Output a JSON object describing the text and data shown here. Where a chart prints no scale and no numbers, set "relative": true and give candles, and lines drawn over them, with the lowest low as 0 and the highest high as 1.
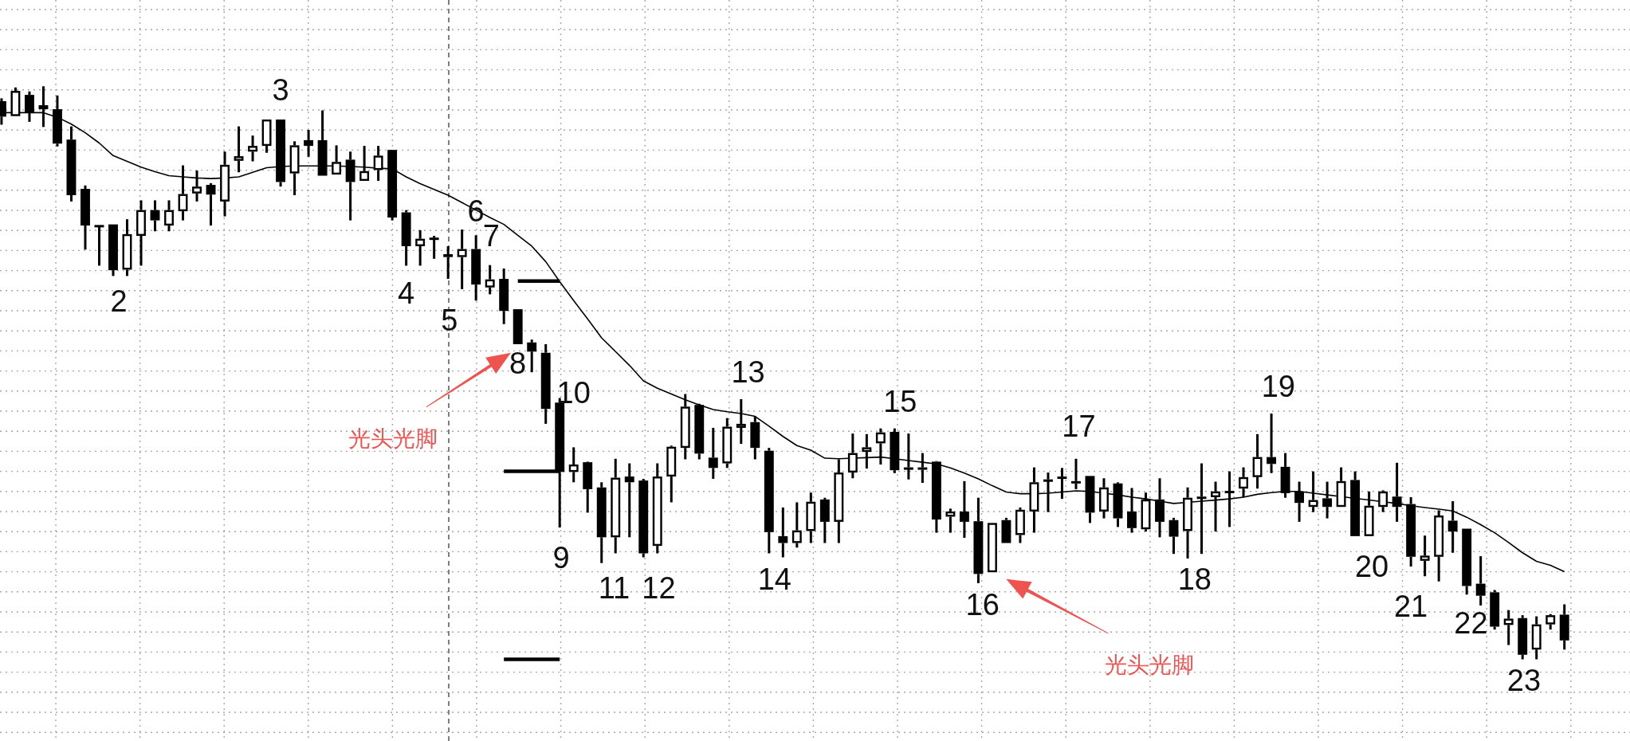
{
  "chart_data": {
    "type": "candlestick",
    "relative": true,
    "color": "#000000",
    "grid": true,
    "categories": [
      null,
      null,
      null,
      null,
      null,
      null,
      null,
      null,
      null,
      null,
      null,
      null,
      null,
      null,
      null,
      null,
      null,
      null,
      null,
      null,
      null,
      null,
      null,
      null,
      null,
      null,
      null,
      null,
      null,
      null,
      null,
      null,
      null,
      null,
      null,
      null,
      null,
      null,
      null,
      null,
      null,
      null,
      null,
      null,
      null,
      null,
      null,
      null,
      null,
      null,
      null,
      null,
      null,
      null,
      null,
      null,
      null,
      null,
      null,
      null,
      null,
      null,
      null,
      null,
      null,
      null,
      null,
      null,
      null,
      null,
      null,
      null,
      null,
      null,
      null,
      null,
      null,
      null,
      null,
      null,
      null,
      null,
      null,
      null,
      null,
      null,
      null,
      null,
      null,
      null,
      null,
      null,
      null,
      null,
      null,
      null,
      null,
      null,
      null,
      null,
      null,
      null,
      null,
      null,
      null,
      null,
      null,
      null,
      null,
      null,
      null,
      null,
      null
    ],
    "ohlc": [
      [
        0.974,
        0.979,
        0.933,
        0.947
      ],
      [
        0.948,
        0.998,
        0.948,
        0.992
      ],
      [
        0.985,
        0.991,
        0.938,
        0.954
      ],
      [
        0.967,
        1.0,
        0.929,
        0.96
      ],
      [
        0.96,
        0.984,
        0.895,
        0.9
      ],
      [
        0.907,
        0.93,
        0.799,
        0.81
      ],
      [
        0.821,
        0.827,
        0.715,
        0.757
      ],
      [
        0.758,
        0.758,
        0.687,
        0.757
      ],
      [
        0.759,
        0.759,
        0.669,
        0.679
      ],
      [
        0.68,
        0.768,
        0.669,
        0.742
      ],
      [
        0.739,
        0.801,
        0.687,
        0.784
      ],
      [
        0.784,
        0.801,
        0.747,
        0.766
      ],
      [
        0.757,
        0.801,
        0.747,
        0.784
      ],
      [
        0.782,
        0.862,
        0.766,
        0.812
      ],
      [
        0.813,
        0.853,
        0.799,
        0.825
      ],
      [
        0.828,
        0.831,
        0.757,
        0.811
      ],
      [
        0.799,
        0.886,
        0.773,
        0.863
      ],
      [
        0.87,
        0.93,
        0.85,
        0.878
      ],
      [
        0.886,
        0.914,
        0.869,
        0.896
      ],
      [
        0.896,
        0.942,
        0.884,
        0.942
      ],
      [
        0.942,
        0.942,
        0.825,
        0.833
      ],
      [
        0.848,
        0.904,
        0.81,
        0.897
      ],
      [
        0.906,
        0.924,
        0.877,
        0.896
      ],
      [
        0.906,
        0.958,
        0.844,
        0.844
      ],
      [
        0.846,
        0.897,
        0.846,
        0.868
      ],
      [
        0.872,
        0.886,
        0.766,
        0.833
      ],
      [
        0.835,
        0.896,
        0.835,
        0.852
      ],
      [
        0.854,
        0.896,
        0.835,
        0.879
      ],
      [
        0.889,
        0.889,
        0.766,
        0.771
      ],
      [
        0.78,
        0.784,
        0.687,
        0.721
      ],
      [
        0.721,
        0.749,
        0.687,
        0.734
      ],
      [
        0.736,
        0.739,
        0.699,
        0.734
      ],
      [
        0.707,
        0.721,
        0.664,
        0.702
      ],
      [
        0.702,
        0.75,
        0.646,
        0.716
      ],
      [
        0.716,
        0.74,
        0.626,
        0.654
      ],
      [
        0.649,
        0.688,
        0.637,
        0.663
      ],
      [
        0.664,
        0.682,
        0.585,
        0.608
      ],
      [
        0.611,
        0.611,
        0.55,
        0.55
      ],
      [
        0.553,
        0.558,
        0.501,
        0.537
      ],
      [
        0.535,
        0.55,
        0.411,
        0.437
      ],
      [
        0.448,
        0.456,
        0.23,
        0.327
      ],
      [
        0.327,
        0.37,
        0.309,
        0.34
      ],
      [
        0.344,
        0.345,
        0.256,
        0.297
      ],
      [
        0.3,
        0.309,
        0.168,
        0.213
      ],
      [
        0.213,
        0.35,
        0.185,
        0.317
      ],
      [
        0.319,
        0.342,
        0.213,
        0.309
      ],
      [
        0.312,
        0.315,
        0.178,
        0.185
      ],
      [
        0.198,
        0.342,
        0.185,
        0.319
      ],
      [
        0.319,
        0.373,
        0.274,
        0.371
      ],
      [
        0.369,
        0.463,
        0.349,
        0.441
      ],
      [
        0.444,
        0.446,
        0.349,
        0.359
      ],
      [
        0.352,
        0.404,
        0.315,
        0.334
      ],
      [
        0.342,
        0.421,
        0.334,
        0.406
      ],
      [
        0.404,
        0.454,
        0.376,
        0.411
      ],
      [
        0.414,
        0.424,
        0.349,
        0.369
      ],
      [
        0.364,
        0.369,
        0.185,
        0.222
      ],
      [
        0.215,
        0.265,
        0.178,
        0.203
      ],
      [
        0.203,
        0.274,
        0.195,
        0.225
      ],
      [
        0.224,
        0.291,
        0.203,
        0.275
      ],
      [
        0.279,
        0.282,
        0.203,
        0.24
      ],
      [
        0.24,
        0.349,
        0.203,
        0.326
      ],
      [
        0.326,
        0.394,
        0.316,
        0.36
      ],
      [
        0.362,
        0.393,
        0.333,
        0.37
      ],
      [
        0.377,
        0.403,
        0.34,
        0.396
      ],
      [
        0.397,
        0.403,
        0.325,
        0.33
      ],
      [
        0.335,
        0.394,
        0.314,
        0.333
      ],
      [
        0.335,
        0.36,
        0.308,
        0.331
      ],
      [
        0.345,
        0.346,
        0.221,
        0.244
      ],
      [
        0.249,
        0.263,
        0.221,
        0.258
      ],
      [
        0.258,
        0.311,
        0.212,
        0.24
      ],
      [
        0.241,
        0.282,
        0.133,
        0.149
      ],
      [
        0.152,
        0.238,
        0.152,
        0.238
      ],
      [
        0.243,
        0.247,
        0.203,
        0.203
      ],
      [
        0.217,
        0.265,
        0.203,
        0.261
      ],
      [
        0.258,
        0.335,
        0.221,
        0.309
      ],
      [
        0.311,
        0.326,
        0.257,
        0.314
      ],
      [
        0.319,
        0.334,
        0.28,
        0.316
      ],
      [
        0.311,
        0.35,
        0.297,
        0.307
      ],
      [
        0.32,
        0.32,
        0.238,
        0.256
      ],
      [
        0.258,
        0.316,
        0.246,
        0.3
      ],
      [
        0.307,
        0.309,
        0.231,
        0.246
      ],
      [
        0.258,
        0.299,
        0.221,
        0.229
      ],
      [
        0.227,
        0.291,
        0.223,
        0.279
      ],
      [
        0.279,
        0.316,
        0.213,
        0.24
      ],
      [
        0.243,
        0.247,
        0.184,
        0.214
      ],
      [
        0.224,
        0.3,
        0.176,
        0.282
      ],
      [
        0.284,
        0.342,
        0.184,
        0.282
      ],
      [
        0.283,
        0.31,
        0.223,
        0.293
      ],
      [
        0.294,
        0.328,
        0.231,
        0.293
      ],
      [
        0.298,
        0.335,
        0.283,
        0.318
      ],
      [
        0.318,
        0.393,
        0.298,
        0.353
      ],
      [
        0.353,
        0.429,
        0.325,
        0.341
      ],
      [
        0.336,
        0.36,
        0.282,
        0.29
      ],
      [
        0.293,
        0.31,
        0.24,
        0.273
      ],
      [
        0.266,
        0.328,
        0.257,
        0.278
      ],
      [
        0.281,
        0.31,
        0.246,
        0.266
      ],
      [
        0.266,
        0.335,
        0.266,
        0.311
      ],
      [
        0.313,
        0.328,
        0.215,
        0.215
      ],
      [
        0.215,
        0.293,
        0.215,
        0.268
      ],
      [
        0.266,
        0.295,
        0.257,
        0.293
      ],
      [
        0.284,
        0.343,
        0.24,
        0.266
      ],
      [
        0.271,
        0.283,
        0.162,
        0.179
      ],
      [
        0.172,
        0.216,
        0.145,
        0.181
      ],
      [
        0.179,
        0.26,
        0.136,
        0.251
      ],
      [
        0.242,
        0.276,
        0.186,
        0.223
      ],
      [
        0.228,
        0.228,
        0.113,
        0.128
      ],
      [
        0.132,
        0.18,
        0.094,
        0.111
      ],
      [
        0.117,
        0.121,
        0.052,
        0.057
      ],
      [
        0.06,
        0.086,
        0.025,
        0.071
      ],
      [
        0.072,
        0.077,
        0.0,
        0.008
      ],
      [
        0.017,
        0.075,
        0.0,
        0.061
      ],
      [
        0.061,
        0.079,
        0.052,
        0.077
      ],
      [
        0.078,
        0.096,
        0.017,
        0.033
      ]
    ],
    "series": [
      {
        "type": "line",
        "color": "#000000",
        "values": [
          0.954,
          0.954,
          0.954,
          0.954,
          0.946,
          0.934,
          0.919,
          0.901,
          0.879,
          0.869,
          0.859,
          0.851,
          0.844,
          0.842,
          0.84,
          0.839,
          0.84,
          0.842,
          0.85,
          0.858,
          0.86,
          0.861,
          0.861,
          0.861,
          0.861,
          0.86,
          0.859,
          0.857,
          0.856,
          0.842,
          0.83,
          0.82,
          0.81,
          0.797,
          0.784,
          0.771,
          0.759,
          0.74,
          0.721,
          0.694,
          0.659,
          0.626,
          0.594,
          0.561,
          0.537,
          0.513,
          0.486,
          0.473,
          0.463,
          0.453,
          0.444,
          0.436,
          0.432,
          0.429,
          0.424,
          0.407,
          0.389,
          0.373,
          0.365,
          0.351,
          0.35,
          0.351,
          0.352,
          0.353,
          0.35,
          0.347,
          0.344,
          0.341,
          0.334,
          0.325,
          0.315,
          0.303,
          0.292,
          0.289,
          0.289,
          0.29,
          0.292,
          0.294,
          0.293,
          0.29,
          0.287,
          0.283,
          0.28,
          0.276,
          0.272,
          0.274,
          0.276,
          0.278,
          0.28,
          0.283,
          0.288,
          0.291,
          0.293,
          0.293,
          0.29,
          0.287,
          0.284,
          0.281,
          0.278,
          0.275,
          0.272,
          0.268,
          0.265,
          0.262,
          0.259,
          0.248,
          0.235,
          0.221,
          0.204,
          0.186,
          0.171,
          0.164,
          0.153
        ]
      },
      {
        "type": "line",
        "color": "#000000",
        "values": [
          null,
          null,
          null,
          null,
          null,
          null,
          null,
          null,
          null,
          null,
          null,
          null,
          null,
          null,
          null,
          null,
          null,
          null,
          null,
          null,
          null,
          null,
          null,
          null,
          null,
          null,
          null,
          null,
          null,
          null,
          null,
          null,
          null,
          null,
          null,
          null,
          null,
          0.66,
          0.66,
          0.66,
          0.66,
          null,
          null,
          null,
          null,
          null,
          null,
          null,
          null,
          null,
          null,
          null,
          null,
          null,
          null,
          null,
          null,
          null,
          null,
          null,
          null,
          null,
          null,
          null,
          null,
          null,
          null,
          null,
          null,
          null,
          null,
          null,
          null,
          null,
          null,
          null,
          null,
          null,
          null,
          null,
          null,
          null,
          null,
          null,
          null,
          null,
          null,
          null,
          null,
          null,
          null,
          null,
          null,
          null,
          null,
          null,
          null,
          null,
          null,
          null,
          null,
          null,
          null,
          null,
          null,
          null,
          null,
          null,
          null,
          null,
          null,
          null,
          null
        ]
      },
      {
        "type": "line",
        "color": "#000000",
        "values": [
          null,
          null,
          null,
          null,
          null,
          null,
          null,
          null,
          null,
          null,
          null,
          null,
          null,
          null,
          null,
          null,
          null,
          null,
          null,
          null,
          null,
          null,
          null,
          null,
          null,
          null,
          null,
          null,
          null,
          null,
          null,
          null,
          null,
          null,
          null,
          null,
          0.328,
          0.328,
          0.328,
          0.328,
          0.328,
          null,
          null,
          null,
          null,
          null,
          null,
          null,
          null,
          null,
          null,
          null,
          null,
          null,
          null,
          null,
          null,
          null,
          null,
          null,
          null,
          null,
          null,
          null,
          null,
          null,
          null,
          null,
          null,
          null,
          null,
          null,
          null,
          null,
          null,
          null,
          null,
          null,
          null,
          null,
          null,
          null,
          null,
          null,
          null,
          null,
          null,
          null,
          null,
          null,
          null,
          null,
          null,
          null,
          null,
          null,
          null,
          null,
          null,
          null,
          null,
          null,
          null,
          null,
          null,
          null,
          null,
          null,
          null,
          null,
          null,
          null,
          null
        ]
      },
      {
        "type": "line",
        "color": "#000000",
        "values": [
          null,
          null,
          null,
          null,
          null,
          null,
          null,
          null,
          null,
          null,
          null,
          null,
          null,
          null,
          null,
          null,
          null,
          null,
          null,
          null,
          null,
          null,
          null,
          null,
          null,
          null,
          null,
          null,
          null,
          null,
          null,
          null,
          null,
          null,
          null,
          null,
          0.0,
          0.0,
          0.0,
          0.0,
          0.0,
          null,
          null,
          null,
          null,
          null,
          null,
          null,
          null,
          null,
          null,
          null,
          null,
          null,
          null,
          null,
          null,
          null,
          null,
          null,
          null,
          null,
          null,
          null,
          null,
          null,
          null,
          null,
          null,
          null,
          null,
          null,
          null,
          null,
          null,
          null,
          null,
          null,
          null,
          null,
          null,
          null,
          null,
          null,
          null,
          null,
          null,
          null,
          null,
          null,
          null,
          null,
          null,
          null,
          null,
          null,
          null,
          null,
          null,
          null,
          null,
          null,
          null,
          null,
          null,
          null,
          null,
          null,
          null,
          null,
          null,
          null,
          null
        ]
      }
    ],
    "annotations": [
      "2",
      "3",
      "4",
      "5",
      "6",
      "7",
      "8",
      "9",
      "10",
      "11",
      "12",
      "13",
      "14",
      "15",
      "16",
      "17",
      "18",
      "19",
      "20",
      "21",
      "22",
      "23",
      "光头光脚",
      "光头光脚"
    ]
  }
}
